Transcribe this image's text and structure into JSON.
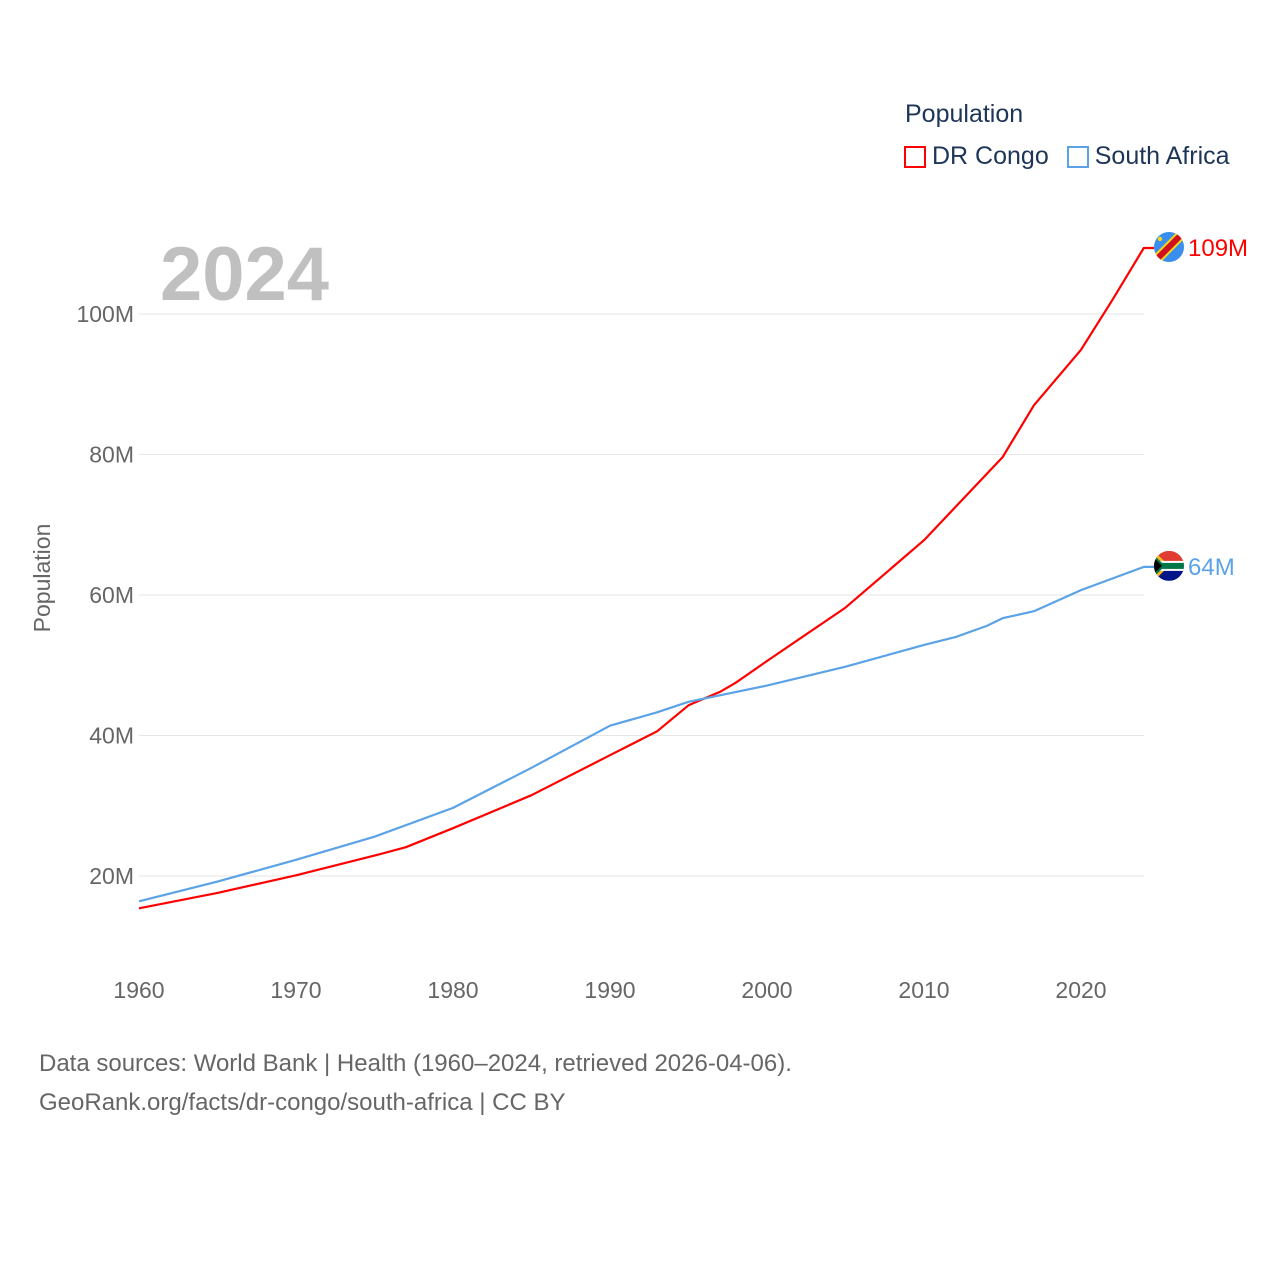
{
  "chart_data": {
    "type": "line",
    "title": "Population",
    "year_overlay": "2024",
    "xlabel": "",
    "ylabel": "Population",
    "xlim": [
      1960,
      2024
    ],
    "ylim": [
      0,
      110000000
    ],
    "x_ticks": [
      1960,
      1970,
      1980,
      1990,
      2000,
      2010,
      2020
    ],
    "x_tick_labels": [
      "1960",
      "1970",
      "1980",
      "1990",
      "2000",
      "2010",
      "2020"
    ],
    "y_ticks": [
      20000000,
      40000000,
      60000000,
      80000000,
      100000000
    ],
    "y_tick_labels": [
      "20M",
      "40M",
      "60M",
      "80M",
      "100M"
    ],
    "grid": true,
    "legend_placement": "top-right",
    "series": [
      {
        "name": "DR Congo",
        "color": "#ff0000",
        "end_label": "109M",
        "flag": "dr-congo-flag",
        "x": [
          1960,
          1965,
          1970,
          1975,
          1977,
          1980,
          1985,
          1990,
          1993,
          1995,
          1997,
          1998,
          2000,
          2005,
          2010,
          2015,
          2017,
          2020,
          2022,
          2024
        ],
        "values": [
          15.4,
          17.6,
          20.1,
          22.9,
          24.1,
          26.8,
          31.5,
          37.2,
          40.6,
          44.3,
          46.2,
          47.5,
          50.6,
          58.2,
          67.8,
          79.6,
          87.0,
          94.9,
          102.0,
          109.4
        ]
      },
      {
        "name": "South Africa",
        "color": "#5ba3e6",
        "end_label": "64M",
        "flag": "south-africa-flag",
        "x": [
          1960,
          1965,
          1970,
          1975,
          1980,
          1985,
          1990,
          1993,
          1995,
          2000,
          2005,
          2010,
          2012,
          2014,
          2015,
          2017,
          2020,
          2024
        ],
        "values": [
          16.4,
          19.2,
          22.3,
          25.6,
          29.7,
          35.4,
          41.4,
          43.3,
          44.8,
          47.1,
          49.8,
          52.9,
          54.0,
          55.6,
          56.7,
          57.7,
          60.7,
          64.0
        ]
      }
    ],
    "value_unit": "millions"
  },
  "footer": {
    "line1": "Data sources: World Bank | Health (1960–2024, retrieved 2026-04-06).",
    "line2": "GeoRank.org/facts/dr-congo/south-africa | CC BY"
  }
}
